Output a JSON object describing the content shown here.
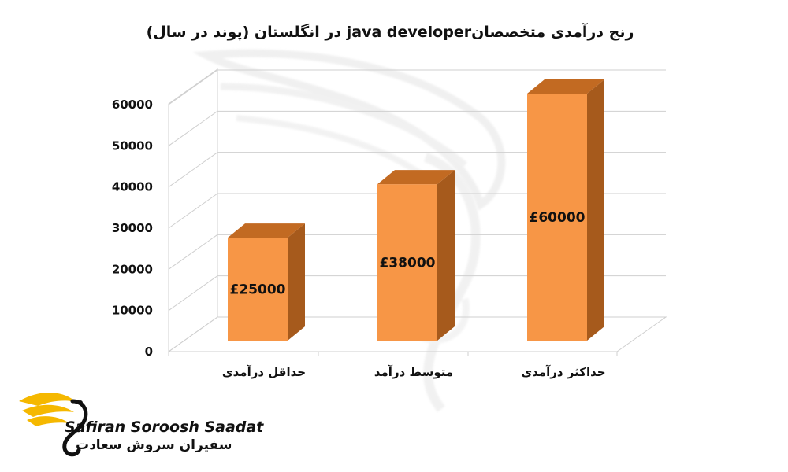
{
  "chart_data": {
    "type": "bar",
    "title": "رنج درآمدی متخصصانjava developer  در انگلستان (پوند در سال)",
    "categories": [
      "حداقل درآمدی",
      "متوسط درآمد",
      "حداکثر درآمدی"
    ],
    "values": [
      25000,
      38000,
      60000
    ],
    "data_labels": [
      "£25000",
      "£38000",
      "£60000"
    ],
    "yticks": [
      "0",
      "10000",
      "20000",
      "30000",
      "40000",
      "50000",
      "60000"
    ],
    "ylim": [
      0,
      60000
    ],
    "three_d": true,
    "grid": true,
    "bar_color": "#F79646",
    "bar_side_color": "#A65A1C",
    "bar_top_color": "#C26A22"
  },
  "brand": {
    "name_en": "Safiran Soroosh Saadat",
    "name_fa": "سفیران سروش سعادت",
    "accent_color": "#F5B800"
  }
}
